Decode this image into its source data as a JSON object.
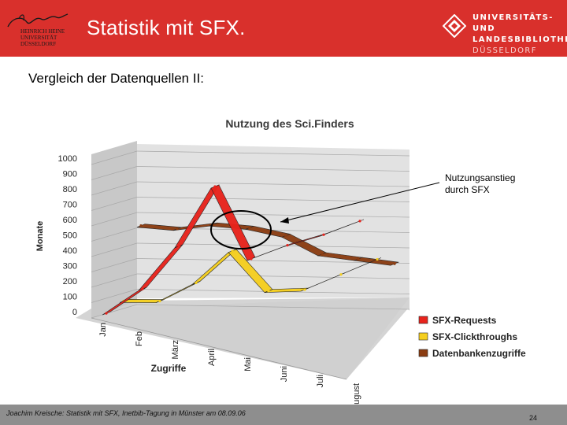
{
  "header": {
    "title": "Statistik mit SFX.",
    "logo_hhu_lines": [
      "HEINRICH HEINE",
      "UNIVERSITÄT",
      "DÜSSELDORF"
    ],
    "logo_ulb_lines": [
      "UNIVERSITÄTS- UND",
      "LANDESBIBLIOTHEK",
      "DÜSSELDORF"
    ]
  },
  "slide": {
    "subtitle": "Vergleich der Datenquellen II:"
  },
  "annotation": {
    "line1": "Nutzungsanstieg",
    "line2": "durch SFX"
  },
  "footer": {
    "text": "Joachim Kreische: Statistik mit SFX, Inetbib-Tagung in Münster am 08.09.06",
    "page": "24"
  },
  "colors": {
    "brand_red": "#d9302c",
    "requests": "#e8231c",
    "clickthroughs": "#f5cf1f",
    "datenbank": "#8b3d12"
  },
  "chart_data": {
    "type": "line",
    "title": "Nutzung des Sci.Finders",
    "xlabel": "Zugriffe",
    "ylabel": "Monate",
    "categories": [
      "Jan",
      "Feb",
      "März",
      "April",
      "Mai",
      "Juni",
      "Juli",
      "August"
    ],
    "ylim": [
      0,
      1000
    ],
    "yticks": [
      0,
      100,
      200,
      300,
      400,
      500,
      600,
      700,
      800,
      900,
      1000
    ],
    "grid": true,
    "style": "3d-ribbon",
    "legend_position": "bottom-right",
    "series": [
      {
        "name": "SFX-Requests",
        "values": [
          20,
          190,
          480,
          880,
          420,
          520,
          600,
          700
        ]
      },
      {
        "name": "SFX-Clickthroughs",
        "values": [
          70,
          80,
          210,
          430,
          180,
          200,
          310,
          420
        ]
      },
      {
        "name": "Datenbankenzugriffe",
        "values": [
          530,
          520,
          560,
          550,
          510,
          400,
          380,
          360
        ]
      }
    ]
  }
}
